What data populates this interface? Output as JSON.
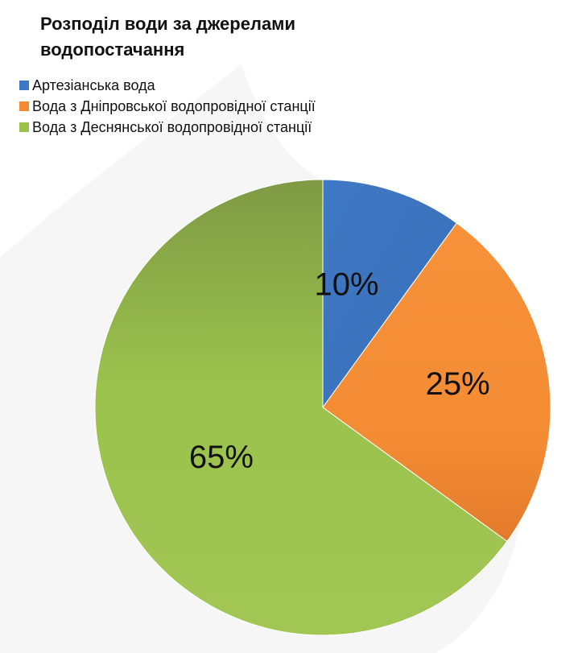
{
  "chart_data": {
    "type": "pie",
    "title": "Розподіл води за джерелами водопостачання",
    "categories": [
      "Артезіанська вода",
      "Вода з Дніпровської водопровідної станції",
      "Вода з Деснянської водопровідної станції"
    ],
    "values": [
      10,
      25,
      65
    ],
    "data_labels": [
      "10%",
      "25%",
      "65%"
    ],
    "colors": [
      "#3F78C4",
      "#F38B33",
      "#9BC24D"
    ],
    "legend_position": "top-left",
    "start_angle": "12 o'clock",
    "direction": "clockwise"
  }
}
